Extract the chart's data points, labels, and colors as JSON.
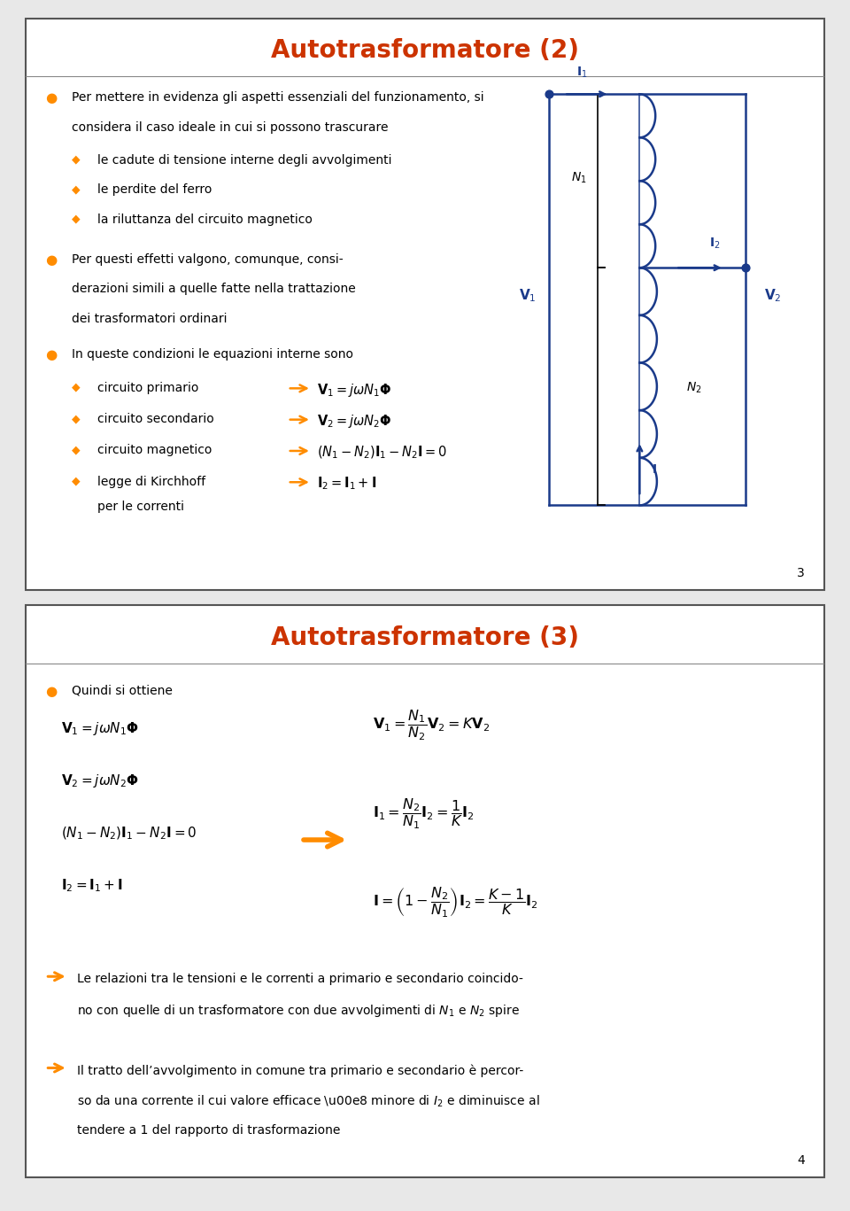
{
  "bg_color": "#e8e8e8",
  "slide1": {
    "title": "Autotrasformatore (2)",
    "title_color": "#cc3300",
    "page_num": "3"
  },
  "slide2": {
    "title": "Autotrasformatore (3)",
    "title_color": "#cc3300",
    "page_num": "4"
  },
  "bullet_main_color": "#ff8c00",
  "bullet_sub_color": "#ff8c00",
  "arrow_color": "#ff8c00",
  "circuit_color": "#1a3a8a",
  "text_color": "#000000",
  "title_sep_color": "#555555"
}
